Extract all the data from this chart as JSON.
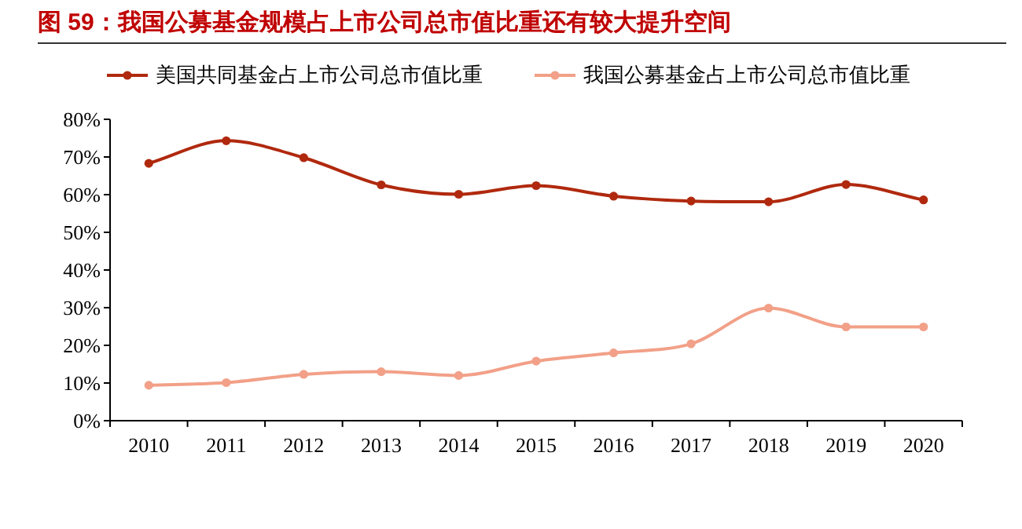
{
  "chart_data": {
    "type": "line",
    "title": "图  59：我国公募基金规模占上市公司总市值比重还有较大提升空间",
    "categories": [
      "2010",
      "2011",
      "2012",
      "2013",
      "2014",
      "2015",
      "2016",
      "2017",
      "2018",
      "2019",
      "2020"
    ],
    "series": [
      {
        "name": "美国共同基金占上市公司总市值比重",
        "color": "#b0290e",
        "values": [
          68.3,
          74.3,
          69.8,
          62.6,
          60.1,
          62.4,
          59.6,
          58.3,
          58.1,
          62.7,
          58.6
        ]
      },
      {
        "name": "我国公募基金占上市公司总市值比重",
        "color": "#f2a088",
        "values": [
          9.4,
          10.1,
          12.3,
          13.0,
          12.0,
          15.8,
          18.0,
          20.4,
          29.9,
          24.9,
          24.9
        ]
      }
    ],
    "ylim": [
      0,
      80
    ],
    "yticks": [
      {
        "value": 0,
        "label": "0%"
      },
      {
        "value": 10,
        "label": "10%"
      },
      {
        "value": 20,
        "label": "20%"
      },
      {
        "value": 30,
        "label": "30%"
      },
      {
        "value": 40,
        "label": "40%"
      },
      {
        "value": 50,
        "label": "50%"
      },
      {
        "value": 60,
        "label": "60%"
      },
      {
        "value": 70,
        "label": "70%"
      },
      {
        "value": 80,
        "label": "80%"
      }
    ],
    "grid": false,
    "legend": "top",
    "marker": "circle",
    "line_style": "solid"
  }
}
